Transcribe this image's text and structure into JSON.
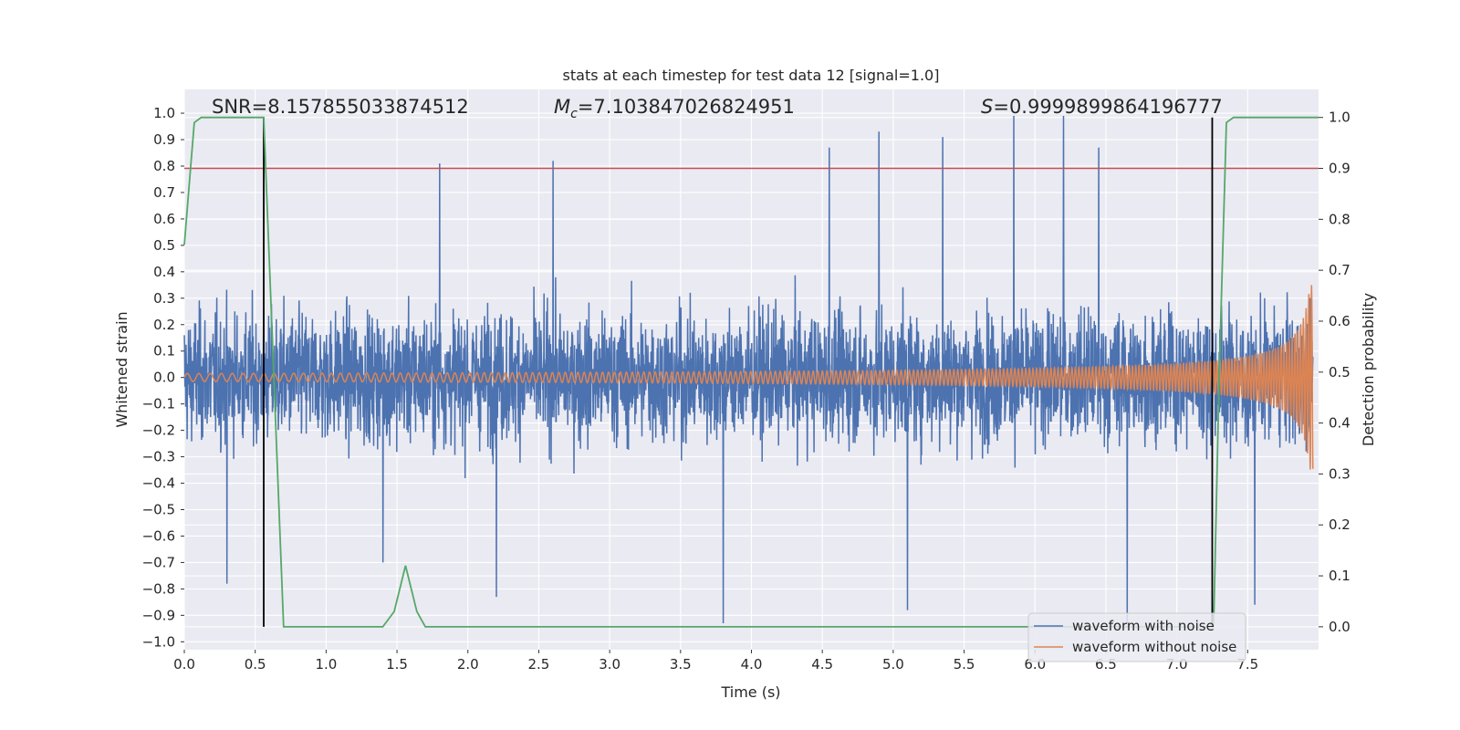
{
  "chart_data": {
    "type": "line",
    "title": "stats at each timestep for test data 12 [signal=1.0]",
    "xlabel": "Time (s)",
    "ylabel": "Whitened strain",
    "y2label": "Detection probability",
    "xlim": [
      0.0,
      8.0
    ],
    "ylim": [
      -1.03,
      1.09
    ],
    "y2lim": [
      -0.045,
      1.055
    ],
    "grid": true,
    "x_ticks": [
      0.0,
      0.5,
      1.0,
      1.5,
      2.0,
      2.5,
      3.0,
      3.5,
      4.0,
      4.5,
      5.0,
      5.5,
      6.0,
      6.5,
      7.0,
      7.5
    ],
    "x_tick_labels": [
      "0.0",
      "0.5",
      "1.0",
      "1.5",
      "2.0",
      "2.5",
      "3.0",
      "3.5",
      "4.0",
      "4.5",
      "5.0",
      "5.5",
      "6.0",
      "6.5",
      "7.0",
      "7.5"
    ],
    "y_ticks": [
      1.0,
      0.9,
      0.8,
      0.7,
      0.6,
      0.5,
      0.4,
      0.3,
      0.2,
      0.1,
      0.0,
      -0.1,
      -0.2,
      -0.3,
      -0.4,
      -0.5,
      -0.6,
      -0.7,
      -0.8,
      -0.9,
      -1.0
    ],
    "y_tick_labels": [
      "1.0",
      "0.9",
      "0.8",
      "0.7",
      "0.6",
      "0.5",
      "0.4",
      "0.3",
      "0.2",
      "0.1",
      "0.0",
      "−0.1",
      "−0.2",
      "−0.3",
      "−0.4",
      "−0.5",
      "−0.6",
      "−0.7",
      "−0.8",
      "−0.9",
      "−1.0"
    ],
    "y2_ticks": [
      1.0,
      0.9,
      0.8,
      0.7,
      0.6,
      0.5,
      0.4,
      0.3,
      0.2,
      0.1,
      0.0
    ],
    "y2_tick_labels": [
      "1.0",
      "0.9",
      "0.8",
      "0.7",
      "0.6",
      "0.5",
      "0.4",
      "0.3",
      "0.2",
      "0.1",
      "0.0"
    ],
    "annotations": {
      "snr": "SNR=8.157855033874512",
      "mc_symbol": "M",
      "mc_sub": "c",
      "mc_value": "=7.103847026824951",
      "s_symbol": "S",
      "s_value": "=0.9999899864196777"
    },
    "threshold": {
      "axis": "right",
      "value": 0.9,
      "color": "#c44e52"
    },
    "vertical_markers": [
      {
        "x": 0.56,
        "color": "#000000"
      },
      {
        "x": 7.25,
        "color": "#000000"
      }
    ],
    "series": [
      {
        "name": "waveform with noise",
        "color": "#4c72b0",
        "axis": "left",
        "kind": "noise",
        "duration": 8.0,
        "peaks": [
          {
            "x": 5.85,
            "y": 0.99
          },
          {
            "x": 6.2,
            "y": 0.99
          },
          {
            "x": 4.9,
            "y": 0.93
          },
          {
            "x": 5.35,
            "y": 0.91
          },
          {
            "x": 4.55,
            "y": 0.87
          },
          {
            "x": 6.45,
            "y": 0.87
          },
          {
            "x": 2.6,
            "y": 0.82
          },
          {
            "x": 1.8,
            "y": 0.81
          },
          {
            "x": 3.8,
            "y": -0.93
          },
          {
            "x": 6.65,
            "y": -0.93
          },
          {
            "x": 5.1,
            "y": -0.88
          },
          {
            "x": 2.2,
            "y": -0.83
          },
          {
            "x": 0.3,
            "y": -0.78
          },
          {
            "x": 1.4,
            "y": -0.7
          },
          {
            "x": 7.55,
            "y": -0.86
          }
        ]
      },
      {
        "name": "waveform without noise",
        "color": "#dd8452",
        "axis": "left",
        "kind": "chirp",
        "t_end": 7.96,
        "amplitude_start": 0.015,
        "amplitude_end": 0.35
      },
      {
        "name": "detection probability",
        "color": "#55a868",
        "axis": "right",
        "kind": "line",
        "x": [
          0.0,
          0.07,
          0.12,
          0.2,
          0.5,
          0.56,
          0.7,
          1.0,
          1.4,
          1.48,
          1.56,
          1.64,
          1.7,
          2.0,
          6.0,
          7.0,
          7.2,
          7.26,
          7.3,
          7.35,
          7.4,
          7.6,
          8.0
        ],
        "y": [
          0.75,
          0.99,
          1.0,
          1.0,
          1.0,
          1.0,
          0.0,
          0.0,
          0.0,
          0.03,
          0.12,
          0.03,
          0.0,
          0.0,
          0.0,
          0.0,
          0.0,
          0.0,
          0.5,
          0.99,
          1.0,
          1.0,
          1.0
        ]
      }
    ],
    "legend": {
      "position": "lower-right",
      "entries": [
        {
          "label": "waveform with noise",
          "color": "#4c72b0"
        },
        {
          "label": "waveform without noise",
          "color": "#dd8452"
        }
      ]
    }
  },
  "theme": {
    "axes_bg": "#eaeaf2",
    "grid": "#ffffff",
    "text": "#262626",
    "tick": "#333333"
  }
}
